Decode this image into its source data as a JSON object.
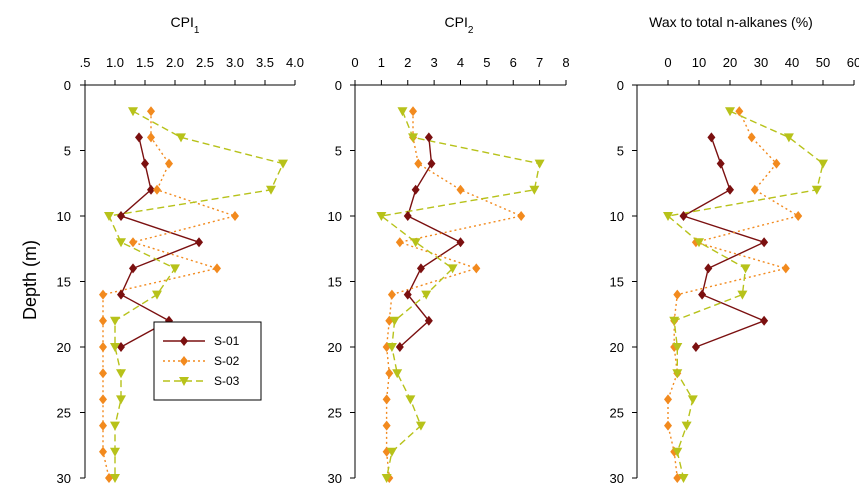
{
  "figure": {
    "ylabel": "Depth (m)"
  },
  "legend": [
    {
      "name": "S-01",
      "color": "#7b1010",
      "marker": "diamond",
      "dash": ""
    },
    {
      "name": "S-02",
      "color": "#f28a1e",
      "marker": "diamond",
      "dash": "2,3"
    },
    {
      "name": "S-03",
      "color": "#b7c21a",
      "marker": "triangle-down",
      "dash": "7,4"
    }
  ],
  "chart_data": [
    {
      "type": "line",
      "title": "CPI",
      "title_sub": "1",
      "xlabel": "",
      "ylabel": "Depth (m)",
      "x_ticks": [
        0.5,
        1.0,
        1.5,
        2.0,
        2.5,
        3.0,
        3.5,
        4.0
      ],
      "x_tick_labels": [
        ".5",
        "1.0",
        "1.5",
        "2.0",
        "2.5",
        "3.0",
        "3.5",
        "4.0"
      ],
      "xlim": [
        0.5,
        4.0
      ],
      "ylim": [
        0,
        30
      ],
      "y_ticks": [
        0,
        5,
        10,
        15,
        20,
        25,
        30
      ],
      "series": [
        {
          "name": "S-01",
          "points": [
            [
              1.4,
              4
            ],
            [
              1.5,
              6
            ],
            [
              1.6,
              8
            ],
            [
              1.1,
              10
            ],
            [
              2.4,
              12
            ],
            [
              1.3,
              14
            ],
            [
              1.1,
              16
            ],
            [
              1.9,
              18
            ],
            [
              1.1,
              20
            ]
          ]
        },
        {
          "name": "S-02",
          "points": [
            [
              1.6,
              2
            ],
            [
              1.6,
              4
            ],
            [
              1.9,
              6
            ],
            [
              1.7,
              8
            ],
            [
              3.0,
              10
            ],
            [
              1.3,
              12
            ],
            [
              2.7,
              14
            ],
            [
              0.8,
              16
            ],
            [
              0.8,
              18
            ],
            [
              0.8,
              20
            ],
            [
              0.8,
              22
            ],
            [
              0.8,
              24
            ],
            [
              0.8,
              26
            ],
            [
              0.8,
              28
            ],
            [
              0.9,
              30
            ]
          ]
        },
        {
          "name": "S-03",
          "points": [
            [
              1.3,
              2
            ],
            [
              2.1,
              4
            ],
            [
              3.8,
              6
            ],
            [
              3.6,
              8
            ],
            [
              0.9,
              10
            ],
            [
              1.1,
              12
            ],
            [
              2.0,
              14
            ],
            [
              1.7,
              16
            ],
            [
              1.0,
              18
            ],
            [
              1.0,
              20
            ],
            [
              1.1,
              22
            ],
            [
              1.1,
              24
            ],
            [
              1.0,
              26
            ],
            [
              1.0,
              28
            ],
            [
              1.0,
              30
            ]
          ]
        }
      ]
    },
    {
      "type": "line",
      "title": "CPI",
      "title_sub": "2",
      "xlabel": "",
      "ylabel": "",
      "x_ticks": [
        0,
        1,
        2,
        3,
        4,
        5,
        6,
        7,
        8
      ],
      "x_tick_labels": [
        "0",
        "1",
        "2",
        "3",
        "4",
        "5",
        "6",
        "7",
        "8"
      ],
      "xlim": [
        0,
        8
      ],
      "ylim": [
        0,
        30
      ],
      "y_ticks": [
        0,
        5,
        10,
        15,
        20,
        25,
        30
      ],
      "series": [
        {
          "name": "S-01",
          "points": [
            [
              2.8,
              4
            ],
            [
              2.9,
              6
            ],
            [
              2.3,
              8
            ],
            [
              2.0,
              10
            ],
            [
              4.0,
              12
            ],
            [
              2.5,
              14
            ],
            [
              2.0,
              16
            ],
            [
              2.8,
              18
            ],
            [
              1.7,
              20
            ]
          ]
        },
        {
          "name": "S-02",
          "points": [
            [
              2.2,
              2
            ],
            [
              2.2,
              4
            ],
            [
              2.4,
              6
            ],
            [
              4.0,
              8
            ],
            [
              6.3,
              10
            ],
            [
              1.7,
              12
            ],
            [
              4.6,
              14
            ],
            [
              1.4,
              16
            ],
            [
              1.3,
              18
            ],
            [
              1.2,
              20
            ],
            [
              1.3,
              22
            ],
            [
              1.2,
              24
            ],
            [
              1.2,
              26
            ],
            [
              1.2,
              28
            ],
            [
              1.3,
              30
            ]
          ]
        },
        {
          "name": "S-03",
          "points": [
            [
              1.8,
              2
            ],
            [
              2.2,
              4
            ],
            [
              7.0,
              6
            ],
            [
              6.8,
              8
            ],
            [
              1.0,
              10
            ],
            [
              2.3,
              12
            ],
            [
              3.7,
              14
            ],
            [
              2.7,
              16
            ],
            [
              1.5,
              18
            ],
            [
              1.4,
              20
            ],
            [
              1.6,
              22
            ],
            [
              2.1,
              24
            ],
            [
              2.5,
              26
            ],
            [
              1.4,
              28
            ],
            [
              1.2,
              30
            ]
          ]
        }
      ]
    },
    {
      "type": "line",
      "title": "Wax to total n-alkanes (%)",
      "xlabel": "",
      "ylabel": "",
      "x_ticks": [
        0,
        10,
        20,
        30,
        40,
        50,
        60
      ],
      "x_tick_labels": [
        "0",
        "10",
        "20",
        "30",
        "40",
        "50",
        "60"
      ],
      "xlim": [
        -10,
        60
      ],
      "ylim": [
        0,
        30
      ],
      "y_ticks": [
        0,
        5,
        10,
        15,
        20,
        25,
        30
      ],
      "series": [
        {
          "name": "S-01",
          "points": [
            [
              14,
              4
            ],
            [
              17,
              6
            ],
            [
              20,
              8
            ],
            [
              5,
              10
            ],
            [
              31,
              12
            ],
            [
              13,
              14
            ],
            [
              11,
              16
            ],
            [
              31,
              18
            ],
            [
              9,
              20
            ]
          ]
        },
        {
          "name": "S-02",
          "points": [
            [
              23,
              2
            ],
            [
              27,
              4
            ],
            [
              35,
              6
            ],
            [
              28,
              8
            ],
            [
              42,
              10
            ],
            [
              9,
              12
            ],
            [
              38,
              14
            ],
            [
              3,
              16
            ],
            [
              2,
              18
            ],
            [
              2,
              20
            ],
            [
              3,
              22
            ],
            [
              0,
              24
            ],
            [
              0,
              26
            ],
            [
              2,
              28
            ],
            [
              3,
              30
            ]
          ]
        },
        {
          "name": "S-03",
          "points": [
            [
              20,
              2
            ],
            [
              39,
              4
            ],
            [
              50,
              6
            ],
            [
              48,
              8
            ],
            [
              0,
              10
            ],
            [
              10,
              12
            ],
            [
              25,
              14
            ],
            [
              24,
              16
            ],
            [
              2,
              18
            ],
            [
              3,
              20
            ],
            [
              3,
              22
            ],
            [
              8,
              24
            ],
            [
              6,
              26
            ],
            [
              3,
              28
            ],
            [
              5,
              30
            ]
          ]
        }
      ]
    }
  ]
}
